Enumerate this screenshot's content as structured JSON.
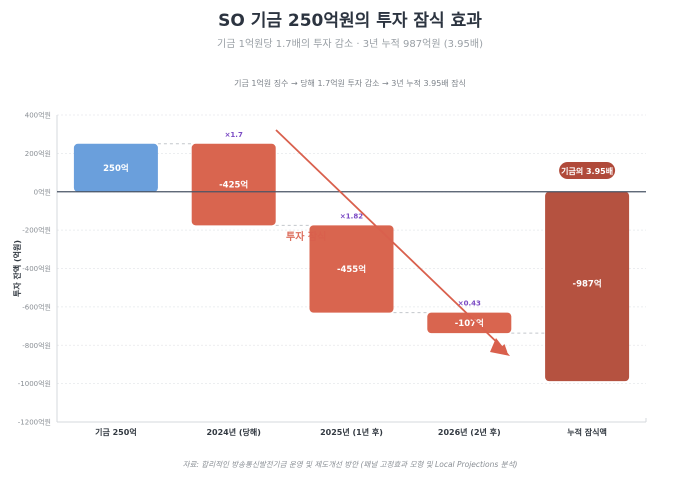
{
  "header": {
    "title": "SO 기금 250억원의 투자 잠식 효과",
    "subtitle": "기금 1억원당 1.7배의 투자 감소 · 3년 누적 987억원 (3.95배)",
    "caption": "기금 1억원 징수 → 당해 1.7억원 투자 감소 → 3년 누적 3.95배 잠식"
  },
  "footer": {
    "source": "자료: 합리적인 방송통신발전기금 운영 및 제도개선 방안 (패널 고정효과 모형 및 Local Projections 분석)"
  },
  "annotations": {
    "erosion_label": "투자 잠식",
    "cumulative_badge": "기금의 3.95배"
  },
  "colors": {
    "positive": "#6a9fdc",
    "negative": "#d9654f",
    "cumulative": "#b55240",
    "badge": "#b04a3a",
    "arrow": "#d9604d",
    "multiplier": "#7b4bc4",
    "zero_line": "#4a5566"
  },
  "chart_data": {
    "type": "bar",
    "subtype": "waterfall",
    "title": "SO 기금 250억원의 투자 잠식 효과",
    "subtitle": "기금 1억원당 1.7배의 투자 감소 · 3년 누적 987억원 (3.95배)",
    "xlabel": "",
    "ylabel": "투자 잔액 (억원)",
    "ylim": [
      -1200,
      400
    ],
    "yticks": [
      400,
      200,
      0,
      -200,
      -400,
      -600,
      -800,
      -1000,
      -1200
    ],
    "ytick_labels": [
      "400억원",
      "200억원",
      "0억원",
      "-200억원",
      "-400억원",
      "-600억원",
      "-800억원",
      "-1000억원",
      "-1200억원"
    ],
    "categories": [
      "기금 250억",
      "2024년 (당해)",
      "2025년 (1년 후)",
      "2026년 (2년 후)",
      "누적 잠식액"
    ],
    "values": [
      250,
      -425,
      -455,
      -107,
      -987
    ],
    "bar_labels": [
      "250억",
      "-425억",
      "-455억",
      "-107억",
      "-987억"
    ],
    "bar_ranges": [
      [
        0,
        250
      ],
      [
        250,
        -175
      ],
      [
        -175,
        -630
      ],
      [
        -630,
        -737
      ],
      [
        0,
        -987
      ]
    ],
    "multipliers": [
      "",
      "×1.7",
      "×1.82",
      "×0.43",
      ""
    ],
    "grid": true,
    "legend": null
  }
}
